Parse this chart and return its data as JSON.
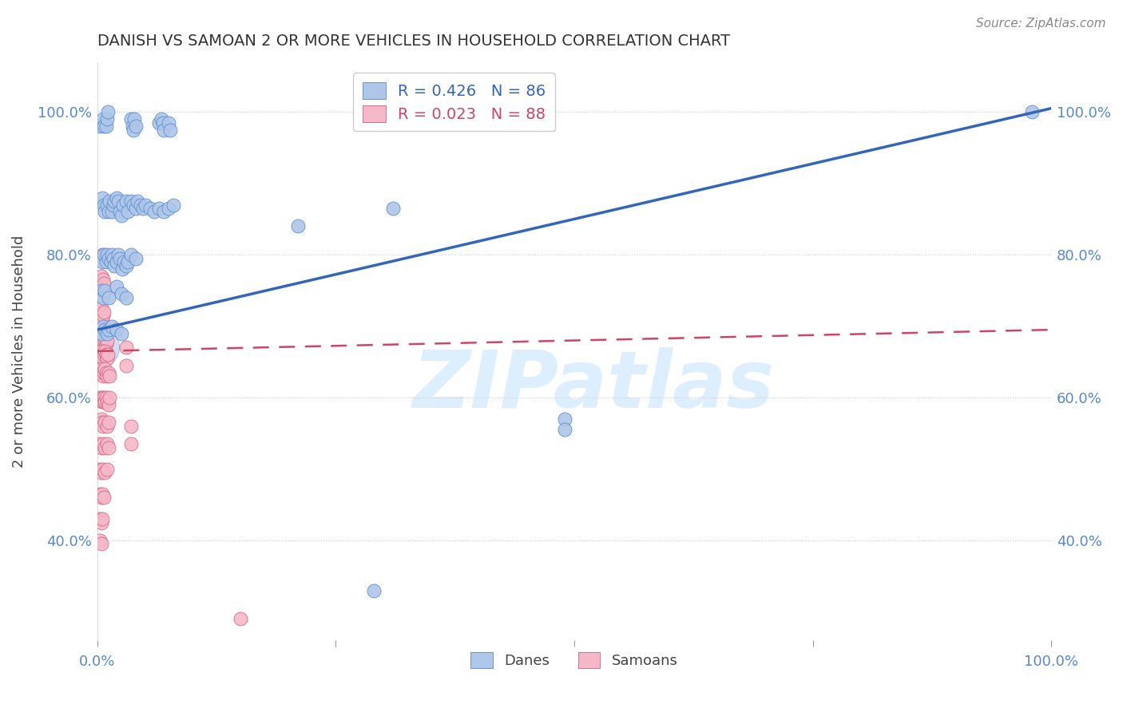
{
  "title": "DANISH VS SAMOAN 2 OR MORE VEHICLES IN HOUSEHOLD CORRELATION CHART",
  "source": "Source: ZipAtlas.com",
  "ylabel": "2 or more Vehicles in Household",
  "ytick_labels": [
    "40.0%",
    "60.0%",
    "80.0%",
    "100.0%"
  ],
  "ytick_values": [
    0.4,
    0.6,
    0.8,
    1.0
  ],
  "xlim": [
    0.0,
    1.0
  ],
  "ylim": [
    0.26,
    1.07
  ],
  "legend_blue": "R = 0.426   N = 86",
  "legend_pink": "R = 0.023   N = 88",
  "legend_label_blue": "Danes",
  "legend_label_pink": "Samoans",
  "blue_color": "#aec6e8",
  "pink_color": "#f5b8c8",
  "blue_edge_color": "#5588cc",
  "pink_edge_color": "#d06080",
  "blue_line_color": "#3366bb",
  "pink_line_color": "#cc4466",
  "watermark_color": "#ddeeff",
  "title_color": "#333333",
  "axis_color": "#5588cc",
  "grid_color": "#ccccdd",
  "blue_line": {
    "x0": 0.0,
    "y0": 0.695,
    "x1": 1.0,
    "y1": 1.005
  },
  "pink_line": {
    "x0": 0.0,
    "y0": 0.665,
    "x1": 1.0,
    "y1": 0.695
  },
  "blue_scatter": [
    [
      0.003,
      0.98
    ],
    [
      0.006,
      0.99
    ],
    [
      0.007,
      0.98
    ],
    [
      0.009,
      0.98
    ],
    [
      0.01,
      0.99
    ],
    [
      0.011,
      1.0
    ],
    [
      0.035,
      0.99
    ],
    [
      0.037,
      0.98
    ],
    [
      0.038,
      0.975
    ],
    [
      0.039,
      0.99
    ],
    [
      0.04,
      0.98
    ],
    [
      0.065,
      0.985
    ],
    [
      0.067,
      0.99
    ],
    [
      0.069,
      0.985
    ],
    [
      0.07,
      0.975
    ],
    [
      0.075,
      0.985
    ],
    [
      0.076,
      0.975
    ],
    [
      0.005,
      0.88
    ],
    [
      0.007,
      0.87
    ],
    [
      0.008,
      0.86
    ],
    [
      0.01,
      0.87
    ],
    [
      0.012,
      0.86
    ],
    [
      0.013,
      0.875
    ],
    [
      0.015,
      0.86
    ],
    [
      0.017,
      0.87
    ],
    [
      0.018,
      0.875
    ],
    [
      0.02,
      0.88
    ],
    [
      0.022,
      0.875
    ],
    [
      0.024,
      0.86
    ],
    [
      0.025,
      0.855
    ],
    [
      0.027,
      0.87
    ],
    [
      0.03,
      0.875
    ],
    [
      0.032,
      0.86
    ],
    [
      0.035,
      0.875
    ],
    [
      0.038,
      0.87
    ],
    [
      0.04,
      0.865
    ],
    [
      0.042,
      0.875
    ],
    [
      0.045,
      0.87
    ],
    [
      0.048,
      0.865
    ],
    [
      0.05,
      0.87
    ],
    [
      0.055,
      0.865
    ],
    [
      0.06,
      0.86
    ],
    [
      0.065,
      0.865
    ],
    [
      0.07,
      0.86
    ],
    [
      0.075,
      0.865
    ],
    [
      0.08,
      0.87
    ],
    [
      0.005,
      0.79
    ],
    [
      0.007,
      0.8
    ],
    [
      0.009,
      0.79
    ],
    [
      0.01,
      0.8
    ],
    [
      0.012,
      0.795
    ],
    [
      0.014,
      0.79
    ],
    [
      0.015,
      0.8
    ],
    [
      0.017,
      0.795
    ],
    [
      0.018,
      0.785
    ],
    [
      0.02,
      0.79
    ],
    [
      0.022,
      0.8
    ],
    [
      0.024,
      0.795
    ],
    [
      0.026,
      0.78
    ],
    [
      0.028,
      0.79
    ],
    [
      0.03,
      0.785
    ],
    [
      0.032,
      0.79
    ],
    [
      0.035,
      0.8
    ],
    [
      0.04,
      0.795
    ],
    [
      0.004,
      0.75
    ],
    [
      0.006,
      0.74
    ],
    [
      0.008,
      0.75
    ],
    [
      0.012,
      0.74
    ],
    [
      0.02,
      0.755
    ],
    [
      0.025,
      0.745
    ],
    [
      0.03,
      0.74
    ],
    [
      0.004,
      0.69
    ],
    [
      0.006,
      0.7
    ],
    [
      0.008,
      0.695
    ],
    [
      0.01,
      0.69
    ],
    [
      0.012,
      0.695
    ],
    [
      0.015,
      0.7
    ],
    [
      0.02,
      0.695
    ],
    [
      0.025,
      0.69
    ],
    [
      0.21,
      0.84
    ],
    [
      0.31,
      0.865
    ],
    [
      0.49,
      0.57
    ],
    [
      0.49,
      0.555
    ],
    [
      0.29,
      0.33
    ],
    [
      0.98,
      1.0
    ]
  ],
  "pink_scatter": [
    [
      0.003,
      0.76
    ],
    [
      0.004,
      0.77
    ],
    [
      0.004,
      0.755
    ],
    [
      0.005,
      0.76
    ],
    [
      0.005,
      0.75
    ],
    [
      0.006,
      0.765
    ],
    [
      0.006,
      0.755
    ],
    [
      0.007,
      0.76
    ],
    [
      0.003,
      0.72
    ],
    [
      0.004,
      0.715
    ],
    [
      0.004,
      0.725
    ],
    [
      0.005,
      0.71
    ],
    [
      0.006,
      0.715
    ],
    [
      0.007,
      0.72
    ],
    [
      0.003,
      0.68
    ],
    [
      0.004,
      0.675
    ],
    [
      0.005,
      0.685
    ],
    [
      0.006,
      0.68
    ],
    [
      0.007,
      0.685
    ],
    [
      0.008,
      0.68
    ],
    [
      0.009,
      0.675
    ],
    [
      0.01,
      0.68
    ],
    [
      0.003,
      0.66
    ],
    [
      0.004,
      0.665
    ],
    [
      0.005,
      0.66
    ],
    [
      0.006,
      0.655
    ],
    [
      0.007,
      0.66
    ],
    [
      0.008,
      0.665
    ],
    [
      0.009,
      0.66
    ],
    [
      0.01,
      0.655
    ],
    [
      0.011,
      0.66
    ],
    [
      0.003,
      0.635
    ],
    [
      0.004,
      0.64
    ],
    [
      0.005,
      0.635
    ],
    [
      0.006,
      0.63
    ],
    [
      0.007,
      0.635
    ],
    [
      0.008,
      0.64
    ],
    [
      0.009,
      0.635
    ],
    [
      0.01,
      0.63
    ],
    [
      0.012,
      0.635
    ],
    [
      0.013,
      0.63
    ],
    [
      0.003,
      0.6
    ],
    [
      0.004,
      0.595
    ],
    [
      0.005,
      0.6
    ],
    [
      0.006,
      0.595
    ],
    [
      0.007,
      0.6
    ],
    [
      0.008,
      0.595
    ],
    [
      0.009,
      0.6
    ],
    [
      0.01,
      0.595
    ],
    [
      0.012,
      0.59
    ],
    [
      0.013,
      0.6
    ],
    [
      0.003,
      0.565
    ],
    [
      0.004,
      0.57
    ],
    [
      0.005,
      0.565
    ],
    [
      0.006,
      0.56
    ],
    [
      0.008,
      0.565
    ],
    [
      0.01,
      0.56
    ],
    [
      0.012,
      0.565
    ],
    [
      0.003,
      0.535
    ],
    [
      0.004,
      0.53
    ],
    [
      0.006,
      0.535
    ],
    [
      0.008,
      0.53
    ],
    [
      0.01,
      0.535
    ],
    [
      0.012,
      0.53
    ],
    [
      0.003,
      0.5
    ],
    [
      0.004,
      0.495
    ],
    [
      0.005,
      0.5
    ],
    [
      0.008,
      0.495
    ],
    [
      0.01,
      0.5
    ],
    [
      0.003,
      0.465
    ],
    [
      0.004,
      0.46
    ],
    [
      0.005,
      0.465
    ],
    [
      0.007,
      0.46
    ],
    [
      0.003,
      0.43
    ],
    [
      0.004,
      0.425
    ],
    [
      0.005,
      0.43
    ],
    [
      0.003,
      0.4
    ],
    [
      0.004,
      0.395
    ],
    [
      0.03,
      0.67
    ],
    [
      0.03,
      0.645
    ],
    [
      0.035,
      0.56
    ],
    [
      0.035,
      0.535
    ],
    [
      0.005,
      0.8
    ],
    [
      0.15,
      0.29
    ]
  ]
}
